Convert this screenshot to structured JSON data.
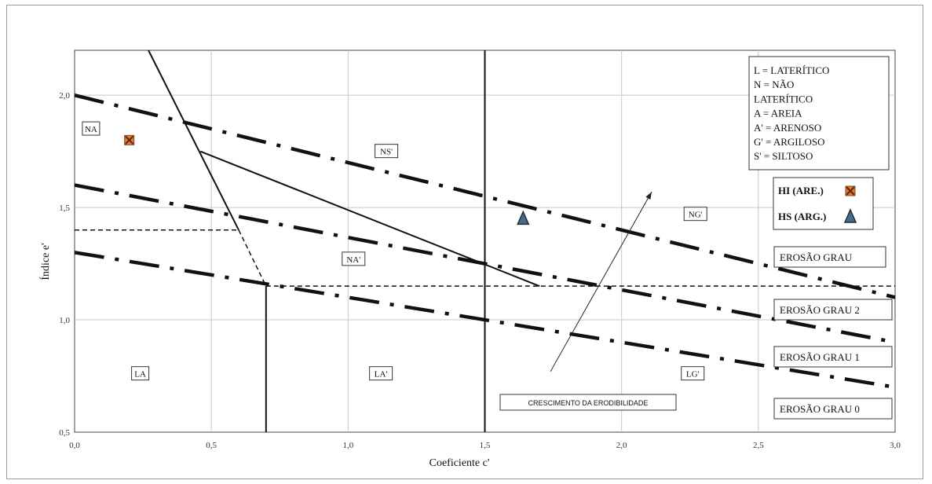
{
  "chart_data": {
    "type": "line",
    "xlabel": "Coeficiente c'",
    "ylabel": "Índice e'",
    "xlim": [
      0.0,
      3.0
    ],
    "ylim": [
      0.5,
      2.2
    ],
    "xticks": [
      "0,0",
      "0,5",
      "1,0",
      "1,5",
      "2,0",
      "2,5",
      "3,0"
    ],
    "yticks": [
      "0,5",
      "1,0",
      "1,5",
      "2,0"
    ],
    "grid": true,
    "dashdot_lines": [
      {
        "name": "",
        "points": [
          [
            0.0,
            2.0
          ],
          [
            3.0,
            1.1
          ]
        ]
      },
      {
        "name": "",
        "points": [
          [
            0.0,
            1.6
          ],
          [
            3.0,
            0.9
          ]
        ]
      },
      {
        "name": "",
        "points": [
          [
            0.0,
            1.3
          ],
          [
            3.0,
            0.7
          ]
        ]
      }
    ],
    "solid_lines": [
      {
        "points": [
          [
            0.27,
            2.2
          ],
          [
            0.6,
            1.4
          ]
        ]
      },
      {
        "points": [
          [
            0.46,
            1.75
          ],
          [
            1.7,
            1.15
          ]
        ]
      },
      {
        "points": [
          [
            0.7,
            1.15
          ],
          [
            0.7,
            0.5
          ]
        ]
      },
      {
        "points": [
          [
            1.5,
            2.2
          ],
          [
            1.5,
            0.5
          ]
        ]
      }
    ],
    "dashed_lines": [
      {
        "points": [
          [
            0.0,
            1.4
          ],
          [
            0.6,
            1.4
          ]
        ]
      },
      {
        "points": [
          [
            0.6,
            1.4
          ],
          [
            0.7,
            1.15
          ]
        ]
      },
      {
        "points": [
          [
            0.7,
            1.15
          ],
          [
            3.0,
            1.15
          ]
        ]
      }
    ],
    "region_labels": [
      {
        "text": "NA",
        "x": 0.06,
        "y": 1.85
      },
      {
        "text": "NS'",
        "x": 1.14,
        "y": 1.75
      },
      {
        "text": "NG'",
        "x": 2.27,
        "y": 1.47
      },
      {
        "text": "NA'",
        "x": 1.02,
        "y": 1.27
      },
      {
        "text": "LA",
        "x": 0.24,
        "y": 0.76
      },
      {
        "text": "LA'",
        "x": 1.12,
        "y": 0.76
      },
      {
        "text": "LG'",
        "x": 2.26,
        "y": 0.76
      }
    ],
    "points": [
      {
        "name": "HI (ARE.)",
        "x": 0.2,
        "y": 1.8,
        "marker": "x-square",
        "color": "#e07b39"
      },
      {
        "name": "HS (ARG.)",
        "x": 1.64,
        "y": 1.45,
        "marker": "triangle",
        "color": "#4a6a8a"
      }
    ],
    "arrow": {
      "label": "CRESCIMENTO DA ERODIBILIDADE",
      "from": [
        1.74,
        0.77
      ],
      "to": [
        2.11,
        1.57
      ]
    },
    "legend_definitions": [
      "L = LATERÍTICO",
      "N = NÃO",
      "LATERÍTICO",
      "A = AREIA",
      "A' = ARENOSO",
      "G' = ARGILOSO",
      "S' = SILTOSO"
    ],
    "marker_legend": [
      {
        "label": "HI (ARE.)",
        "marker": "x-square",
        "color": "#e07b39"
      },
      {
        "label": "HS (ARG.)",
        "marker": "triangle",
        "color": "#4a6a8a"
      }
    ],
    "erosion_labels": [
      {
        "text": "EROSÃO GRAU"
      },
      {
        "text": "EROSÃO GRAU 2"
      },
      {
        "text": "EROSÃO GRAU 1"
      },
      {
        "text": "EROSÃO GRAU 0"
      }
    ]
  }
}
